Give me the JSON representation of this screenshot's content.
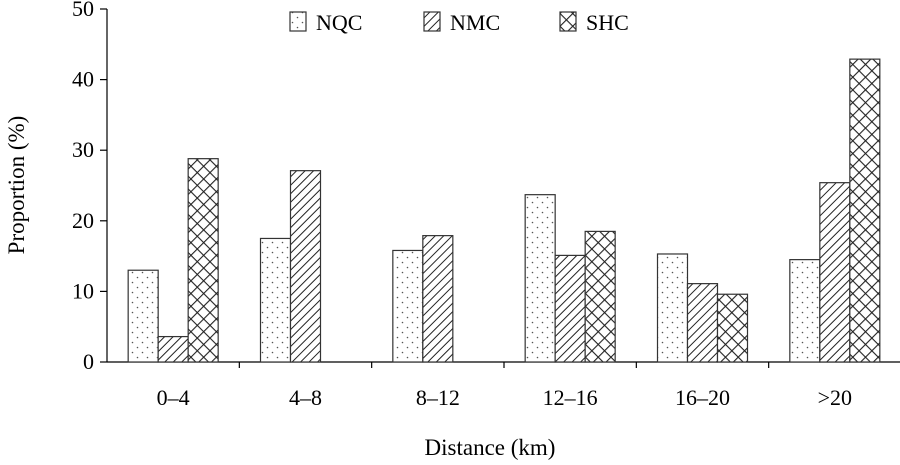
{
  "chart_data": {
    "type": "bar",
    "xlabel": "Distance (km)",
    "ylabel": "Proportion (%)",
    "ylim": [
      0,
      50
    ],
    "yticks": [
      0,
      10,
      20,
      30,
      40,
      50
    ],
    "grid": false,
    "legend_position": "top",
    "categories": [
      "0–4",
      "4–8",
      "8–12",
      "12–16",
      "16–20",
      ">20"
    ],
    "series": [
      {
        "name": "NQC",
        "pattern": "dots",
        "values": [
          13.0,
          17.5,
          15.8,
          23.7,
          15.3,
          14.5
        ]
      },
      {
        "name": "NMC",
        "pattern": "diagonal-hatch",
        "values": [
          3.6,
          27.1,
          17.9,
          15.1,
          11.1,
          25.4
        ]
      },
      {
        "name": "SHC",
        "pattern": "crosshatch",
        "values": [
          28.8,
          null,
          null,
          18.5,
          9.6,
          42.9
        ]
      }
    ]
  }
}
